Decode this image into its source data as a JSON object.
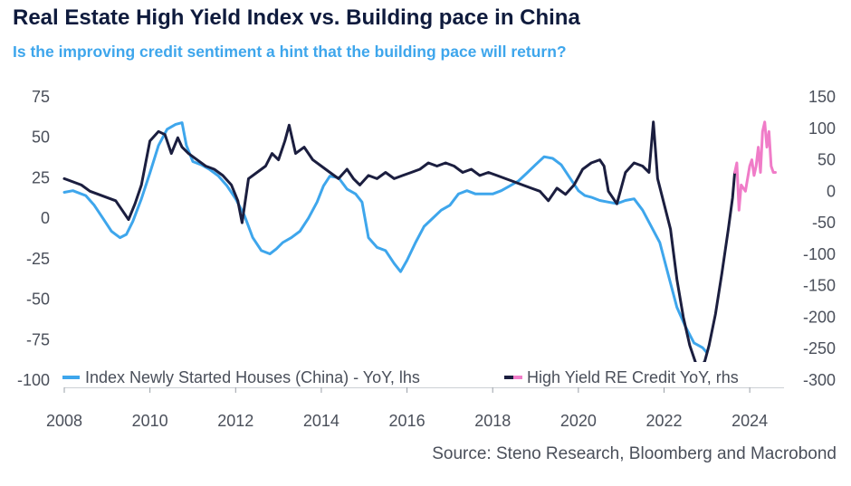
{
  "header": {
    "title": "Real Estate High Yield Index vs. Building pace in China",
    "subtitle": "Is the improving credit sentiment a hint that the building pace will return?"
  },
  "footer": {
    "source": "Source: Steno Research, Bloomberg and Macrobond"
  },
  "colors": {
    "houses": "#3ea6ec",
    "credit": "#1b1e3f",
    "credit_recent": "#f07cc8",
    "axis_text": "#4a4f5a",
    "title": "#0f1b3d"
  },
  "chart_data": {
    "type": "line",
    "grid": false,
    "legend_position": "bottom-inside",
    "x_range": [
      2008,
      2024.8
    ],
    "x_ticks": [
      "2008",
      "2010",
      "2012",
      "2014",
      "2016",
      "2018",
      "2020",
      "2022",
      "2024"
    ],
    "y_left": {
      "range": [
        -100,
        75
      ],
      "ticks": [
        "75",
        "50",
        "25",
        "0",
        "-25",
        "-50",
        "-75",
        "-100"
      ]
    },
    "y_right": {
      "range": [
        -300,
        150
      ],
      "ticks": [
        "150",
        "100",
        "50",
        "0",
        "-50",
        "-100",
        "-150",
        "-200",
        "-250",
        "-300"
      ]
    },
    "legend": [
      {
        "label": "Index Newly Started Houses (China) - YoY, lhs",
        "color": "#3ea6ec"
      },
      {
        "label": "High Yield RE Credit YoY, rhs",
        "color": "#1b1e3f",
        "color2": "#f07cc8"
      }
    ],
    "series": [
      {
        "key": "houses",
        "axis": "left",
        "x": [
          2008.0,
          2008.2,
          2008.5,
          2008.7,
          2008.9,
          2009.1,
          2009.3,
          2009.45,
          2009.6,
          2009.8,
          2010.0,
          2010.2,
          2010.4,
          2010.6,
          2010.75,
          2010.85,
          2011.0,
          2011.2,
          2011.4,
          2011.6,
          2011.8,
          2012.0,
          2012.2,
          2012.4,
          2012.6,
          2012.8,
          2012.95,
          2013.1,
          2013.3,
          2013.5,
          2013.7,
          2013.9,
          2014.05,
          2014.2,
          2014.4,
          2014.6,
          2014.8,
          2014.95,
          2015.1,
          2015.3,
          2015.5,
          2015.7,
          2015.85,
          2016.0,
          2016.2,
          2016.4,
          2016.6,
          2016.8,
          2017.0,
          2017.2,
          2017.4,
          2017.6,
          2017.8,
          2018.0,
          2018.2,
          2018.4,
          2018.6,
          2018.8,
          2019.0,
          2019.2,
          2019.4,
          2019.6,
          2019.8,
          2020.0,
          2020.15,
          2020.3,
          2020.5,
          2020.7,
          2020.9,
          2021.1,
          2021.3,
          2021.5,
          2021.7,
          2021.9,
          2022.1,
          2022.3,
          2022.5,
          2022.7,
          2022.9,
          2023.0
        ],
        "values": [
          16,
          17,
          14,
          8,
          0,
          -8,
          -12,
          -10,
          -2,
          12,
          28,
          45,
          55,
          58,
          59,
          45,
          35,
          33,
          30,
          26,
          20,
          12,
          2,
          -12,
          -20,
          -22,
          -19,
          -15,
          -12,
          -8,
          0,
          10,
          20,
          26,
          25,
          18,
          15,
          10,
          -12,
          -18,
          -20,
          -28,
          -33,
          -26,
          -15,
          -5,
          0,
          5,
          8,
          15,
          17,
          15,
          15,
          15,
          17,
          20,
          23,
          28,
          33,
          38,
          37,
          33,
          25,
          17,
          14,
          13,
          11,
          10,
          9,
          11,
          12,
          5,
          -5,
          -15,
          -35,
          -55,
          -67,
          -77,
          -80,
          -83
        ]
      },
      {
        "key": "credit",
        "axis": "right",
        "x": [
          2008.0,
          2008.2,
          2008.4,
          2008.6,
          2008.8,
          2009.0,
          2009.2,
          2009.35,
          2009.5,
          2009.65,
          2009.8,
          2010.0,
          2010.2,
          2010.35,
          2010.5,
          2010.65,
          2010.75,
          2010.9,
          2011.1,
          2011.3,
          2011.5,
          2011.7,
          2011.9,
          2012.05,
          2012.15,
          2012.3,
          2012.5,
          2012.7,
          2012.85,
          2013.0,
          2013.15,
          2013.25,
          2013.4,
          2013.6,
          2013.8,
          2014.0,
          2014.2,
          2014.4,
          2014.6,
          2014.75,
          2014.9,
          2015.1,
          2015.3,
          2015.5,
          2015.7,
          2015.9,
          2016.1,
          2016.3,
          2016.5,
          2016.7,
          2016.9,
          2017.1,
          2017.3,
          2017.5,
          2017.7,
          2017.9,
          2018.1,
          2018.3,
          2018.5,
          2018.7,
          2018.9,
          2019.1,
          2019.3,
          2019.5,
          2019.7,
          2019.9,
          2020.1,
          2020.3,
          2020.5,
          2020.6,
          2020.7,
          2020.9,
          2021.1,
          2021.3,
          2021.5,
          2021.65,
          2021.75,
          2021.85,
          2022.0,
          2022.15,
          2022.3,
          2022.45,
          2022.6,
          2022.75,
          2022.85,
          2022.95,
          2023.05,
          2023.2,
          2023.35,
          2023.5,
          2023.6,
          2023.65
        ],
        "values": [
          20,
          15,
          10,
          0,
          -5,
          -10,
          -15,
          -30,
          -45,
          -20,
          10,
          80,
          95,
          90,
          60,
          85,
          70,
          60,
          50,
          40,
          35,
          25,
          10,
          -15,
          -50,
          20,
          30,
          40,
          60,
          50,
          80,
          105,
          60,
          70,
          50,
          40,
          30,
          20,
          35,
          20,
          10,
          25,
          20,
          30,
          20,
          25,
          30,
          35,
          45,
          40,
          45,
          40,
          30,
          35,
          25,
          30,
          25,
          20,
          15,
          10,
          5,
          0,
          -15,
          5,
          -5,
          10,
          35,
          45,
          50,
          40,
          0,
          -20,
          30,
          45,
          40,
          30,
          110,
          20,
          -20,
          -60,
          -140,
          -200,
          -245,
          -275,
          -280,
          -270,
          -245,
          -195,
          -130,
          -60,
          -10,
          30
        ]
      },
      {
        "key": "credit_recent",
        "axis": "right",
        "x": [
          2023.65,
          2023.7,
          2023.75,
          2023.8,
          2023.9,
          2024.0,
          2024.05,
          2024.1,
          2024.15,
          2024.2,
          2024.25,
          2024.3,
          2024.35,
          2024.4,
          2024.45,
          2024.5,
          2024.55,
          2024.6
        ],
        "values": [
          30,
          45,
          -30,
          10,
          0,
          40,
          50,
          25,
          40,
          70,
          30,
          95,
          110,
          70,
          95,
          40,
          30,
          30
        ]
      }
    ]
  }
}
